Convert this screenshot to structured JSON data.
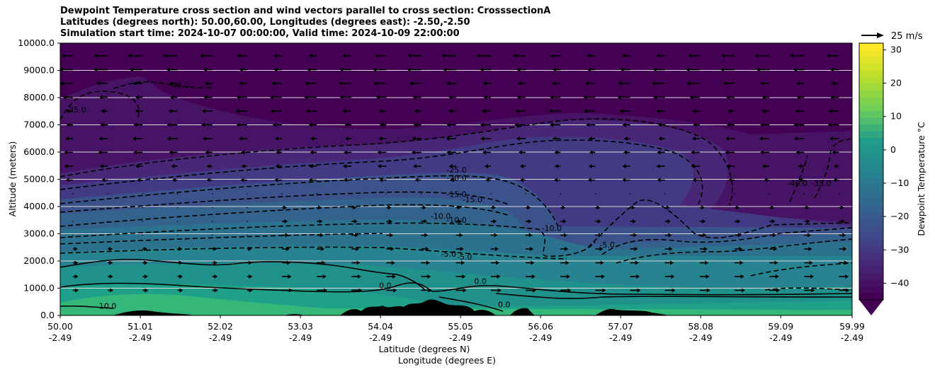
{
  "title": {
    "line1": "Dewpoint Temperature cross section and wind vectors parallel to cross section: CrosssectionA",
    "line2": "Latitudes (degrees north): 50.00,60.00, Longitudes (degrees east): -2.50,-2.50",
    "line3": "Simulation start time: 2024-10-07 00:00:00, Valid time: 2024-10-09 22:00:00"
  },
  "quiver_key": {
    "label": "25 m/s"
  },
  "colorbar": {
    "label": "Dewpoint Temperature °C",
    "ticks": [
      "30",
      "20",
      "10",
      "0",
      "−10",
      "−20",
      "−30",
      "−40"
    ],
    "range": [
      -45,
      32
    ],
    "extend": "min",
    "colors": [
      "#440154",
      "#482777",
      "#3f4a8a",
      "#31678e",
      "#26838f",
      "#1f9d8a",
      "#6cce5a",
      "#b6de2b",
      "#fee825"
    ]
  },
  "chart_data": {
    "type": "contour",
    "title": "Dewpoint Temperature cross section and wind vectors parallel to cross section: CrosssectionA",
    "xlabel": "Latitude (degrees N)",
    "xlabel2": "Longitude (degrees E)",
    "ylabel": "Altitude (meters)",
    "x_ticks": [
      {
        "lat": "50.00",
        "lon": "-2.49"
      },
      {
        "lat": "51.01",
        "lon": "-2.49"
      },
      {
        "lat": "52.02",
        "lon": "-2.49"
      },
      {
        "lat": "53.03",
        "lon": "-2.49"
      },
      {
        "lat": "54.04",
        "lon": "-2.49"
      },
      {
        "lat": "55.05",
        "lon": "-2.49"
      },
      {
        "lat": "56.06",
        "lon": "-2.49"
      },
      {
        "lat": "57.07",
        "lon": "-2.49"
      },
      {
        "lat": "58.08",
        "lon": "-2.49"
      },
      {
        "lat": "59.09",
        "lon": "-2.49"
      },
      {
        "lat": "59.99",
        "lon": "-2.49"
      }
    ],
    "xlim": [
      50.0,
      59.99
    ],
    "y_ticks": [
      "0.0",
      "1000.0",
      "2000.0",
      "3000.0",
      "4000.0",
      "5000.0",
      "6000.0",
      "7000.0",
      "8000.0",
      "9000.0",
      "10000.0"
    ],
    "ylim": [
      0,
      10000
    ],
    "grid": "horizontal",
    "contour_labels": [
      {
        "text": "-40.0",
        "lat": 51.5,
        "alt": 8350
      },
      {
        "text": "-35.0",
        "lat": 50.2,
        "alt": 7450
      },
      {
        "text": "-25.0",
        "lat": 55.0,
        "alt": 5250
      },
      {
        "text": "-20.0",
        "lat": 55.0,
        "alt": 4950
      },
      {
        "text": "-15.0",
        "lat": 55.2,
        "alt": 4150
      },
      {
        "text": "-15.0",
        "lat": 55.0,
        "alt": 4350
      },
      {
        "text": "-10.0",
        "lat": 54.8,
        "alt": 3550
      },
      {
        "text": "-10.0",
        "lat": 55.0,
        "alt": 3400
      },
      {
        "text": "-10.0",
        "lat": 56.2,
        "alt": 3100
      },
      {
        "text": "-5.0",
        "lat": 54.9,
        "alt": 2150
      },
      {
        "text": "-5.0",
        "lat": 55.1,
        "alt": 2050
      },
      {
        "text": "0.0",
        "lat": 55.3,
        "alt": 1150
      },
      {
        "text": "0.0",
        "lat": 54.1,
        "alt": 1000
      },
      {
        "text": "0.0",
        "lat": 55.6,
        "alt": 300
      },
      {
        "text": "10.0",
        "lat": 50.6,
        "alt": 250
      },
      {
        "text": "-40.0",
        "lat": 59.3,
        "alt": 4750
      },
      {
        "text": "-35.0",
        "lat": 59.6,
        "alt": 4750
      },
      {
        "text": "-5.0",
        "lat": 56.9,
        "alt": 2500
      }
    ]
  }
}
